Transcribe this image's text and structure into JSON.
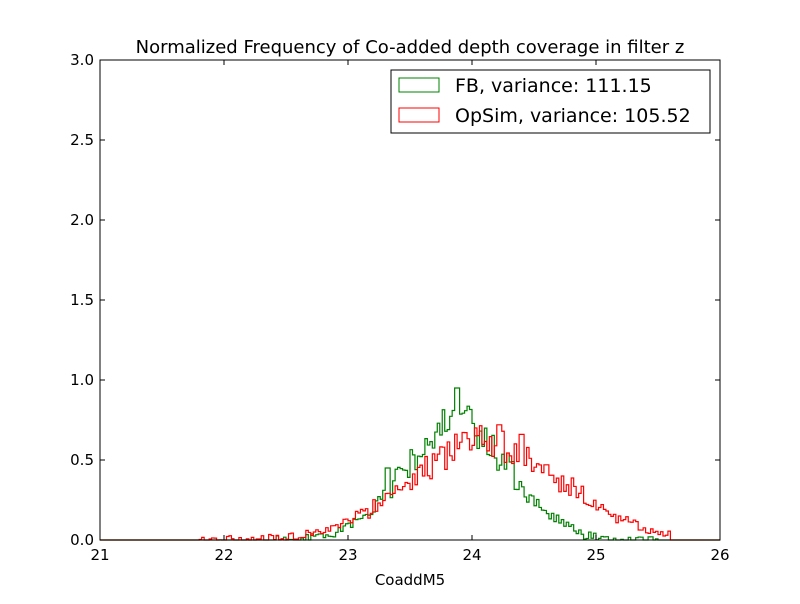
{
  "chart_data": {
    "type": "histogram",
    "title": "Normalized Frequency of Co-added depth coverage in filter z",
    "xlabel": "CoaddM5",
    "ylabel": "",
    "xlim": [
      21,
      26
    ],
    "ylim": [
      0,
      3.0
    ],
    "x_ticks": [
      "21",
      "22",
      "23",
      "24",
      "25",
      "26"
    ],
    "y_ticks": [
      "0.0",
      "0.5",
      "1.0",
      "1.5",
      "2.0",
      "2.5",
      "3.0"
    ],
    "legend_position": "top-right",
    "grid": false,
    "series": [
      {
        "name": "FB, variance: 111.15",
        "color": "#008000",
        "mean": 23.88,
        "sigma": 0.42,
        "peak": 0.72,
        "features": [
          {
            "x": 23.88,
            "value": 0.95
          },
          {
            "x": 23.32,
            "value": 0.45
          },
          {
            "x": 23.55,
            "value": 0.44
          },
          {
            "x": 23.73,
            "value": 0.73
          }
        ],
        "range": [
          22.4,
          25.5
        ]
      },
      {
        "name": "OpSim, variance: 105.52",
        "color": "#ff0000",
        "mean": 24.12,
        "sigma": 0.62,
        "peak": 0.61,
        "features": [
          {
            "x": 24.22,
            "value": 0.72
          },
          {
            "x": 24.4,
            "value": 0.66
          },
          {
            "x": 24.6,
            "value": 0.47
          }
        ],
        "range": [
          21.8,
          25.6
        ]
      }
    ]
  }
}
